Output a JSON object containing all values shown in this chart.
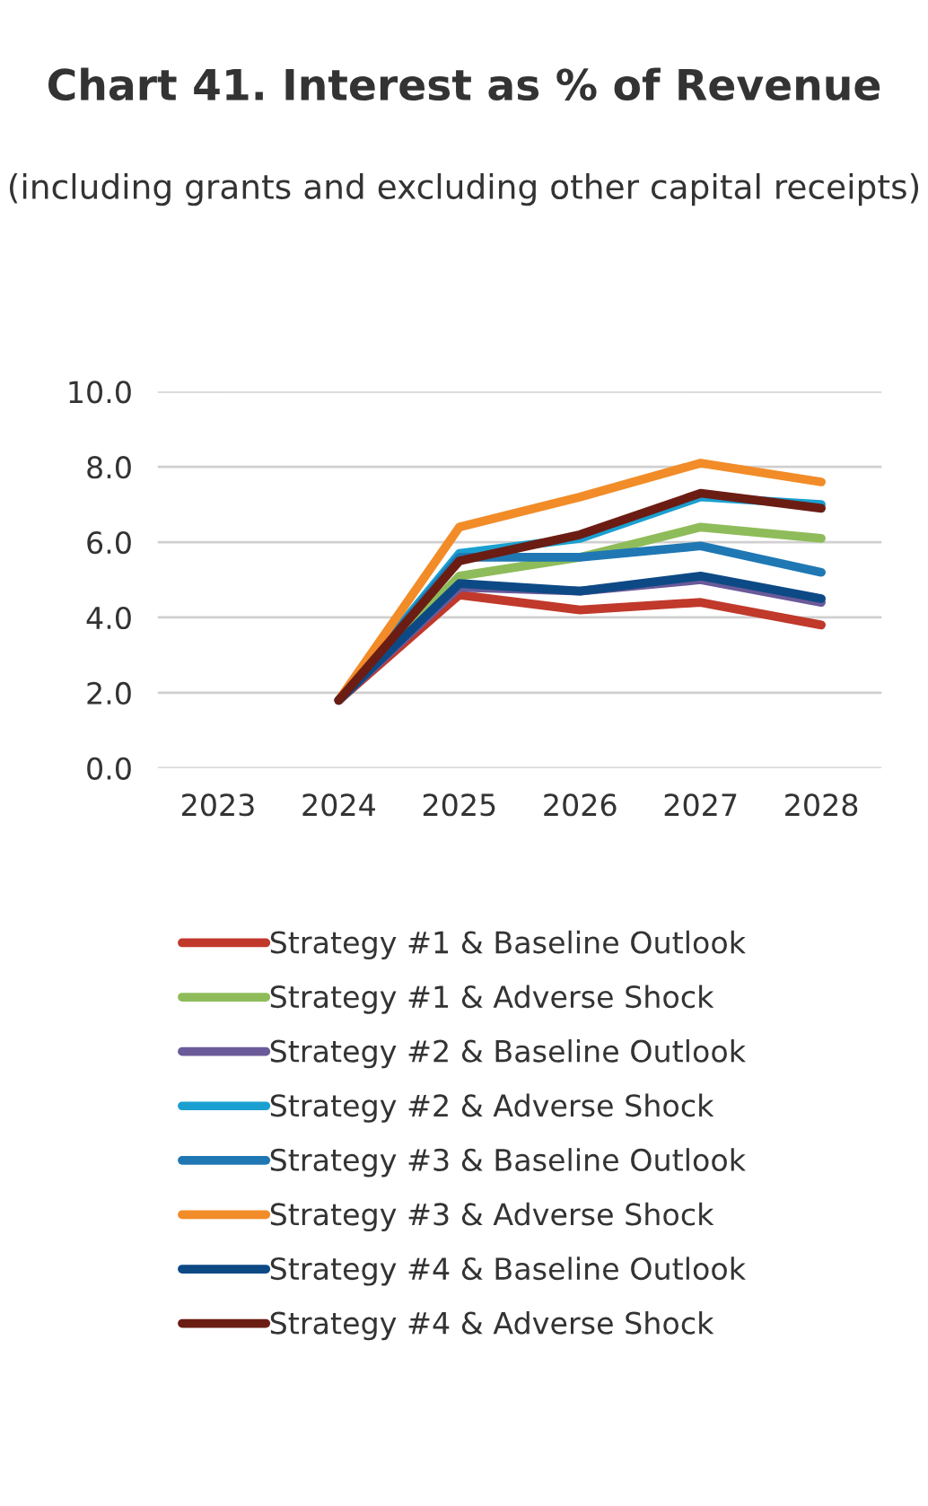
{
  "chart_data": {
    "type": "line",
    "title": "Chart 41. Interest as % of Revenue",
    "subtitle": "(including grants and excluding other capital receipts)",
    "categories": [
      "2023",
      "2024",
      "2025",
      "2026",
      "2027",
      "2028"
    ],
    "series": [
      {
        "name": "Strategy #1 & Baseline Outlook",
        "color": "#c0392b",
        "values": [
          null,
          1.8,
          4.6,
          4.2,
          4.4,
          3.8
        ]
      },
      {
        "name": "Strategy #1 & Adverse Shock",
        "color": "#8fbc5a",
        "values": [
          null,
          1.8,
          5.1,
          5.6,
          6.4,
          6.1
        ]
      },
      {
        "name": "Strategy #2 & Baseline Outlook",
        "color": "#6a5a9a",
        "values": [
          null,
          1.8,
          4.8,
          4.7,
          5.0,
          4.4
        ]
      },
      {
        "name": "Strategy #2 & Adverse Shock",
        "color": "#1aa0d0",
        "values": [
          null,
          1.8,
          5.7,
          6.1,
          7.2,
          7.0
        ]
      },
      {
        "name": "Strategy #3 & Baseline Outlook",
        "color": "#1f78b4",
        "values": [
          null,
          1.8,
          5.6,
          5.6,
          5.9,
          5.2
        ]
      },
      {
        "name": "Strategy #3 & Adverse Shock",
        "color": "#f28c28",
        "values": [
          null,
          1.8,
          6.4,
          7.2,
          8.1,
          7.6
        ]
      },
      {
        "name": "Strategy #4 & Baseline Outlook",
        "color": "#0d4a85",
        "values": [
          null,
          1.8,
          4.9,
          4.7,
          5.1,
          4.5
        ]
      },
      {
        "name": "Strategy #4 & Adverse Shock",
        "color": "#6b1d14",
        "values": [
          null,
          1.8,
          5.5,
          6.2,
          7.3,
          6.9
        ]
      }
    ],
    "ylim": [
      0,
      10
    ],
    "yticks": [
      {
        "value": 0,
        "label": "0.0"
      },
      {
        "value": 2,
        "label": "2.0"
      },
      {
        "value": 4,
        "label": "4.0"
      },
      {
        "value": 6,
        "label": "6.0"
      },
      {
        "value": 8,
        "label": "8.0"
      },
      {
        "value": 10,
        "label": "10.0"
      }
    ],
    "grid": "y",
    "legend": "bottom",
    "line_style": "solid"
  }
}
